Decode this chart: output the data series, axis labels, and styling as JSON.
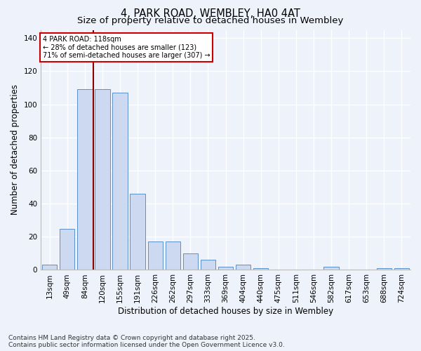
{
  "title1": "4, PARK ROAD, WEMBLEY, HA0 4AT",
  "title2": "Size of property relative to detached houses in Wembley",
  "xlabel": "Distribution of detached houses by size in Wembley",
  "ylabel": "Number of detached properties",
  "categories": [
    "13sqm",
    "49sqm",
    "84sqm",
    "120sqm",
    "155sqm",
    "191sqm",
    "226sqm",
    "262sqm",
    "297sqm",
    "333sqm",
    "369sqm",
    "404sqm",
    "440sqm",
    "475sqm",
    "511sqm",
    "546sqm",
    "582sqm",
    "617sqm",
    "653sqm",
    "688sqm",
    "724sqm"
  ],
  "values": [
    3,
    25,
    109,
    109,
    107,
    46,
    17,
    17,
    10,
    6,
    2,
    3,
    1,
    0,
    0,
    0,
    2,
    0,
    0,
    1,
    1
  ],
  "bar_color": "#ccd9f0",
  "bar_edge_color": "#5b8fcc",
  "ylim": [
    0,
    145
  ],
  "yticks": [
    0,
    20,
    40,
    60,
    80,
    100,
    120,
    140
  ],
  "property_line_idx": 3,
  "property_line_label": "4 PARK ROAD: 118sqm",
  "annotation_line1": "← 28% of detached houses are smaller (123)",
  "annotation_line2": "71% of semi-detached houses are larger (307) →",
  "footer1": "Contains HM Land Registry data © Crown copyright and database right 2025.",
  "footer2": "Contains public sector information licensed under the Open Government Licence v3.0.",
  "background_color": "#eef2fb",
  "grid_color": "#ffffff",
  "title_fontsize": 10.5,
  "subtitle_fontsize": 9.5,
  "axis_label_fontsize": 8.5,
  "tick_fontsize": 7.5,
  "footer_fontsize": 6.5
}
